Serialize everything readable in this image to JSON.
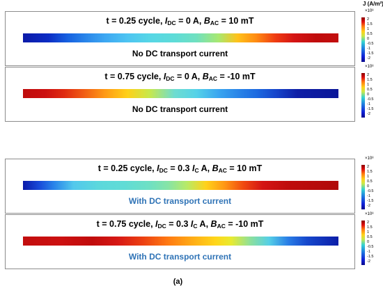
{
  "unit_label": "J (A/m²)",
  "colorbar": {
    "exponent": "×10⁸",
    "ticks": [
      "2",
      "1.5",
      "1",
      "0.5",
      "0",
      "-0.5",
      "-1",
      "-1.5",
      "-2"
    ]
  },
  "panels": [
    {
      "t_text": "t = 0.25 cycle, ",
      "idc_value": " = 0 A, ",
      "bac_value": " = 10 mT",
      "footer": "No DC transport current",
      "gradient": "linear-gradient(to right,#0b1aa8 0%,#0c2cc4 8%,#1660e0 14%,#2a86ea 20%,#3da7f2 26%,#4dc4f2 33%,#56d6e6 40%,#5edcd8 48%,#70e0c0 55%,#a8e870 62%,#ffc21a 68%,#ff8a12 74%,#ef3c12 80%,#d41414 86%,#c00c0c 93%,#c20e0e 100%)"
    },
    {
      "t_text": "t = 0.75 cycle, ",
      "idc_value": " = 0 A, ",
      "bac_value": " = -10 mT",
      "footer": "No DC transport current",
      "gradient": "linear-gradient(to right,#bf0c0c 0%,#cc1010 7%,#df2a10 13%,#f05a14 19%,#ff9a14 26%,#ffd018 33%,#c8e84a 40%,#6edcd0 48%,#55d2e8 55%,#3aa6f0 62%,#2a86e8 68%,#1c6ae0 74%,#1646cc 80%,#0e1ea6 87%,#0a1698 100%)"
    },
    {
      "t_text": "t = 0.25 cycle, ",
      "idc_value": " = 0.3 ",
      "idc_unit": " A, ",
      "bac_value": " = 10 mT",
      "footer": "With DC transport current",
      "gradient": "linear-gradient(to right,#0b1aa8 0%,#1848d8 5%,#2a86ea 10%,#52c8ec 16%,#5cd8dc 24%,#60dcd6 32%,#6ee0c4 40%,#86e4a6 46%,#b8ea66 52%,#ffd21a 58%,#ff9614 64%,#f04810 70%,#d41414 76%,#bf0c0c 84%,#b00a0a 100%)"
    },
    {
      "t_text": "t = 0.75 cycle, ",
      "idc_value": " = 0.3 ",
      "idc_unit": " A, ",
      "bac_value": " = -10 mT",
      "footer": "With DC transport current",
      "gradient": "linear-gradient(to right,#c20e0e 0%,#cc1010 12%,#c00c0c 22%,#d61814 30%,#ec4012 38%,#ff7a12 46%,#ffae16 54%,#ffd61a 61%,#e8ea30 66%,#8ee09a 72%,#55cfe6 78%,#2a7ee6 84%,#1648cc 90%,#0c1ea8 100%)"
    }
  ],
  "caption": "(a)"
}
